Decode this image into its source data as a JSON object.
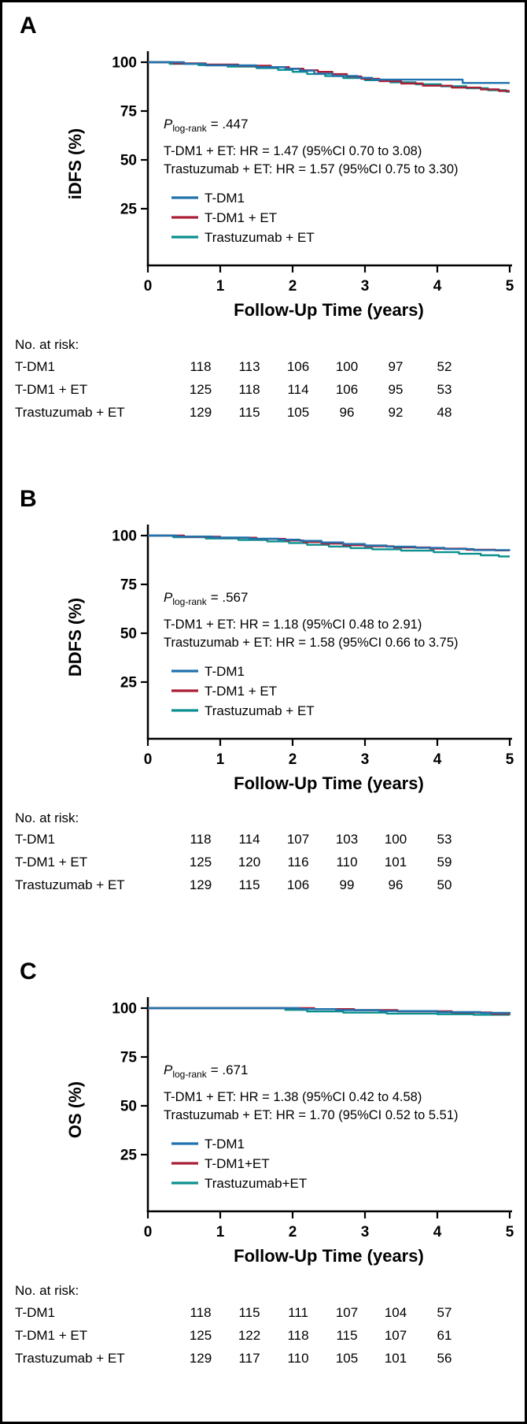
{
  "figure": {
    "background": "#ffffff",
    "border_color": "#000000"
  },
  "colors": {
    "t_dm1": "#1f72ad",
    "t_dm1_et": "#aa1f36",
    "trastuzumab_et": "#0b8f8f",
    "axis": "#000000"
  },
  "axes": {
    "x_label": "Follow-Up Time (years)",
    "x_ticks": [
      0,
      1,
      2,
      3,
      4,
      5
    ],
    "y_ticks": [
      25,
      50,
      75,
      100
    ]
  },
  "risk_header": "No. at risk:",
  "panels": [
    {
      "label": "A",
      "ylabel": "iDFS (%)",
      "p": {
        "symbol": "P",
        "sub": "log-rank",
        "value": "= .447"
      },
      "hr_lines": [
        "T-DM1 + ET: HR = 1.47 (95%CI 0.70 to 3.08)",
        "Trastuzumab + ET: HR = 1.57 (95%CI 0.75 to 3.30)"
      ],
      "legend": [
        "T-DM1",
        "T-DM1 + ET",
        "Trastuzumab + ET"
      ],
      "risk_rows": [
        {
          "label": "T-DM1",
          "values": [
            118,
            113,
            106,
            100,
            97,
            52
          ]
        },
        {
          "label": "T-DM1 + ET",
          "values": [
            125,
            118,
            114,
            106,
            95,
            53
          ]
        },
        {
          "label": "Trastuzumab + ET",
          "values": [
            129,
            115,
            105,
            96,
            92,
            48
          ]
        }
      ]
    },
    {
      "label": "B",
      "ylabel": "DDFS (%)",
      "p": {
        "symbol": "P",
        "sub": "log-rank",
        "value": "= .567"
      },
      "hr_lines": [
        "T-DM1 + ET: HR = 1.18 (95%CI 0.48 to 2.91)",
        "Trastuzumab + ET: HR = 1.58 (95%CI 0.66 to 3.75)"
      ],
      "legend": [
        "T-DM1",
        "T-DM1 + ET",
        "Trastuzumab + ET"
      ],
      "risk_rows": [
        {
          "label": "T-DM1",
          "values": [
            118,
            114,
            107,
            103,
            100,
            53
          ]
        },
        {
          "label": "T-DM1 + ET",
          "values": [
            125,
            120,
            116,
            110,
            101,
            59
          ]
        },
        {
          "label": "Trastuzumab + ET",
          "values": [
            129,
            115,
            106,
            99,
            96,
            50
          ]
        }
      ]
    },
    {
      "label": "C",
      "ylabel": "OS (%)",
      "p": {
        "symbol": "P",
        "sub": "log-rank",
        "value": "= .671"
      },
      "hr_lines": [
        "T-DM1 + ET: HR = 1.38 (95%CI 0.42 to 4.58)",
        "Trastuzumab + ET: HR = 1.70 (95%CI 0.52 to 5.51)"
      ],
      "legend": [
        "T-DM1",
        "T-DM1+ET",
        "Trastuzumab+ET"
      ],
      "risk_rows": [
        {
          "label": "T-DM1",
          "values": [
            118,
            115,
            111,
            107,
            104,
            57
          ]
        },
        {
          "label": "T-DM1 + ET",
          "values": [
            125,
            122,
            118,
            115,
            107,
            61
          ]
        },
        {
          "label": "Trastuzumab + ET",
          "values": [
            129,
            117,
            110,
            105,
            101,
            56
          ]
        }
      ]
    }
  ],
  "chart_data": [
    {
      "type": "line",
      "subtype": "kaplan-meier-step",
      "panel": "A",
      "title": "iDFS",
      "xlabel": "Follow-Up Time (years)",
      "ylabel": "iDFS (%)",
      "xlim": [
        0,
        5
      ],
      "ylim": [
        0,
        100
      ],
      "xticks": [
        0,
        1,
        2,
        3,
        4,
        5
      ],
      "yticks": [
        25,
        50,
        75,
        100
      ],
      "grid": false,
      "legend_position": "inside-lower-left",
      "series": [
        {
          "name": "T-DM1",
          "color": "#1f72ad",
          "points": [
            [
              0,
              100
            ],
            [
              0.5,
              99.2
            ],
            [
              0.8,
              98.4
            ],
            [
              1.5,
              97.5
            ],
            [
              1.9,
              96.6
            ],
            [
              2.1,
              95.7
            ],
            [
              2.3,
              94.1
            ],
            [
              2.55,
              93.0
            ],
            [
              2.9,
              92.0
            ],
            [
              3.1,
              91.1
            ],
            [
              4.35,
              89.4
            ],
            [
              5,
              89.4
            ]
          ]
        },
        {
          "name": "T-DM1 + ET",
          "color": "#aa1f36",
          "points": [
            [
              0,
              100
            ],
            [
              0.35,
              99.4
            ],
            [
              0.8,
              98.8
            ],
            [
              1.25,
              98.2
            ],
            [
              1.7,
              97.5
            ],
            [
              1.95,
              96.7
            ],
            [
              2.15,
              95.9
            ],
            [
              2.35,
              95.1
            ],
            [
              2.55,
              93.9
            ],
            [
              2.75,
              92.7
            ],
            [
              2.95,
              91.5
            ],
            [
              3.2,
              90.3
            ],
            [
              3.5,
              89.1
            ],
            [
              3.8,
              88.0
            ],
            [
              4.2,
              87.0
            ],
            [
              4.6,
              86.1
            ],
            [
              4.85,
              85.3
            ],
            [
              5,
              85.3
            ]
          ]
        },
        {
          "name": "Trastuzumab + ET",
          "color": "#0b8f8f",
          "points": [
            [
              0,
              100
            ],
            [
              0.3,
              99.2
            ],
            [
              0.7,
              98.5
            ],
            [
              1.1,
              97.8
            ],
            [
              1.5,
              97.0
            ],
            [
              1.8,
              96.1
            ],
            [
              2.0,
              95.1
            ],
            [
              2.2,
              94.0
            ],
            [
              2.45,
              92.9
            ],
            [
              2.7,
              91.9
            ],
            [
              3.0,
              90.8
            ],
            [
              3.35,
              89.7
            ],
            [
              3.7,
              88.7
            ],
            [
              4.05,
              87.7
            ],
            [
              4.4,
              86.7
            ],
            [
              4.7,
              85.7
            ],
            [
              4.95,
              84.9
            ],
            [
              5,
              84.9
            ]
          ]
        }
      ]
    },
    {
      "type": "line",
      "subtype": "kaplan-meier-step",
      "panel": "B",
      "title": "DDFS",
      "xlabel": "Follow-Up Time (years)",
      "ylabel": "DDFS (%)",
      "xlim": [
        0,
        5
      ],
      "ylim": [
        0,
        100
      ],
      "xticks": [
        0,
        1,
        2,
        3,
        4,
        5
      ],
      "yticks": [
        25,
        50,
        75,
        100
      ],
      "grid": false,
      "legend_position": "inside-lower-left",
      "series": [
        {
          "name": "T-DM1",
          "color": "#1f72ad",
          "points": [
            [
              0,
              100
            ],
            [
              0.4,
              99.5
            ],
            [
              0.9,
              99.0
            ],
            [
              1.4,
              98.4
            ],
            [
              1.8,
              97.9
            ],
            [
              2.1,
              97.3
            ],
            [
              2.4,
              96.5
            ],
            [
              2.7,
              95.7
            ],
            [
              3.0,
              94.9
            ],
            [
              3.3,
              94.3
            ],
            [
              3.7,
              93.7
            ],
            [
              4.1,
              93.1
            ],
            [
              4.5,
              92.6
            ],
            [
              5,
              92.4
            ]
          ]
        },
        {
          "name": "T-DM1 + ET",
          "color": "#aa1f36",
          "points": [
            [
              0,
              100
            ],
            [
              0.5,
              99.4
            ],
            [
              1.0,
              98.9
            ],
            [
              1.5,
              98.3
            ],
            [
              1.9,
              97.5
            ],
            [
              2.15,
              96.7
            ],
            [
              2.4,
              95.9
            ],
            [
              2.7,
              95.1
            ],
            [
              3.0,
              94.5
            ],
            [
              3.4,
              93.9
            ],
            [
              3.9,
              93.3
            ],
            [
              4.4,
              92.8
            ],
            [
              4.8,
              92.4
            ],
            [
              5,
              92.4
            ]
          ]
        },
        {
          "name": "Trastuzumab + ET",
          "color": "#0b8f8f",
          "points": [
            [
              0,
              100
            ],
            [
              0.35,
              99.2
            ],
            [
              0.8,
              98.5
            ],
            [
              1.25,
              97.8
            ],
            [
              1.65,
              97.0
            ],
            [
              1.95,
              96.2
            ],
            [
              2.2,
              95.3
            ],
            [
              2.5,
              94.4
            ],
            [
              2.8,
              93.6
            ],
            [
              3.1,
              93.0
            ],
            [
              3.5,
              92.3
            ],
            [
              3.95,
              91.5
            ],
            [
              4.3,
              90.7
            ],
            [
              4.6,
              89.9
            ],
            [
              4.85,
              89.3
            ],
            [
              5,
              89.3
            ]
          ]
        }
      ]
    },
    {
      "type": "line",
      "subtype": "kaplan-meier-step",
      "panel": "C",
      "title": "OS",
      "xlabel": "Follow-Up Time (years)",
      "ylabel": "OS (%)",
      "xlim": [
        0,
        5
      ],
      "ylim": [
        0,
        100
      ],
      "xticks": [
        0,
        1,
        2,
        3,
        4,
        5
      ],
      "yticks": [
        25,
        50,
        75,
        100
      ],
      "grid": false,
      "legend_position": "inside-lower-left",
      "series": [
        {
          "name": "T-DM1",
          "color": "#1f72ad",
          "points": [
            [
              0,
              100
            ],
            [
              2.1,
              99.5
            ],
            [
              2.6,
              99.0
            ],
            [
              3.2,
              98.5
            ],
            [
              4.0,
              98.0
            ],
            [
              4.6,
              97.6
            ],
            [
              5,
              97.5
            ]
          ]
        },
        {
          "name": "T-DM1+ET",
          "color": "#aa1f36",
          "points": [
            [
              0,
              100
            ],
            [
              2.3,
              99.5
            ],
            [
              2.85,
              99.0
            ],
            [
              3.45,
              98.4
            ],
            [
              4.2,
              97.8
            ],
            [
              4.75,
              97.1
            ],
            [
              5,
              97.0
            ]
          ]
        },
        {
          "name": "Trastuzumab+ET",
          "color": "#0b8f8f",
          "points": [
            [
              0,
              100
            ],
            [
              1.9,
              99.1
            ],
            [
              2.2,
              98.3
            ],
            [
              2.7,
              97.7
            ],
            [
              3.3,
              97.2
            ],
            [
              4.0,
              96.9
            ],
            [
              4.5,
              96.6
            ],
            [
              5,
              96.5
            ]
          ]
        }
      ]
    }
  ]
}
